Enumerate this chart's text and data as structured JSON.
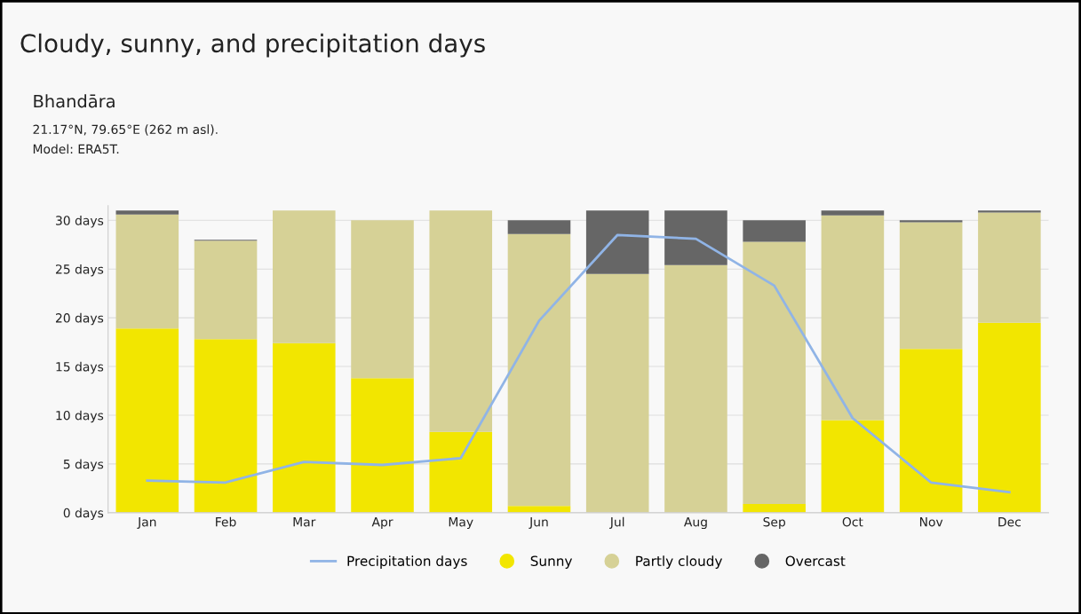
{
  "chart_data": {
    "type": "bar",
    "stacked": true,
    "title": "Cloudy, sunny, and precipitation days",
    "subtitle": "Bhandāra",
    "annotations": [
      "21.17°N, 79.65°E (262 m asl).",
      "Model: ERA5T."
    ],
    "categories": [
      "Jan",
      "Feb",
      "Mar",
      "Apr",
      "May",
      "Jun",
      "Jul",
      "Aug",
      "Sep",
      "Oct",
      "Nov",
      "Dec"
    ],
    "series": [
      {
        "name": "Precipitation days",
        "type": "line",
        "color": "#90b4e6",
        "values": [
          3.3,
          3.1,
          5.2,
          4.9,
          5.6,
          19.7,
          28.5,
          28.1,
          23.3,
          9.7,
          3.1,
          2.1
        ]
      },
      {
        "name": "Sunny",
        "color": "#f2e600",
        "values": [
          18.9,
          17.8,
          17.4,
          13.8,
          8.3,
          0.7,
          0,
          0,
          0.9,
          9.5,
          16.8,
          19.5
        ]
      },
      {
        "name": "Partly cloudy",
        "color": "#d6d196",
        "values": [
          11.7,
          10.1,
          13.6,
          16.2,
          22.7,
          27.9,
          24.5,
          25.4,
          26.9,
          21.0,
          13.0,
          11.3
        ]
      },
      {
        "name": "Overcast",
        "color": "#666666",
        "values": [
          0.4,
          0.1,
          0,
          0,
          0,
          1.4,
          6.5,
          5.6,
          2.2,
          0.5,
          0.2,
          0.2
        ]
      }
    ],
    "ylim": [
      0,
      31.5
    ],
    "yticks": [
      {
        "value": 0,
        "label": "0 days"
      },
      {
        "value": 5,
        "label": "5 days"
      },
      {
        "value": 10,
        "label": "10 days"
      },
      {
        "value": 15,
        "label": "15 days"
      },
      {
        "value": 20,
        "label": "20 days"
      },
      {
        "value": 25,
        "label": "25 days"
      },
      {
        "value": 30,
        "label": "30 days"
      }
    ],
    "grid": "y",
    "legend": "bottom",
    "marker": "none",
    "line_style": "solid"
  }
}
